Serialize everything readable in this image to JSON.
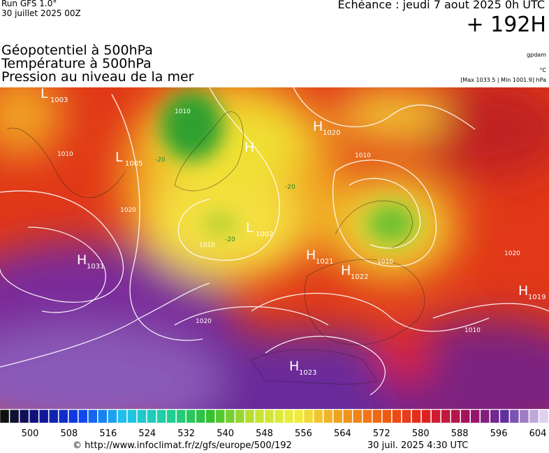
{
  "header": {
    "run": "Run GFS 1.0°",
    "run_date": "30 juillet 2025 00Z",
    "forecast": "Echéance : jeudi 7 aout 2025 0h UTC",
    "lead": "+ 192H",
    "fields": [
      "Géopotentiel à 500hPa",
      "Température à 500hPa",
      "Pression au niveau de la mer"
    ],
    "units": [
      "gpdam",
      "°C",
      "[Max 1033.5 | Min 1001.9] hPa"
    ]
  },
  "map": {
    "centers": [
      {
        "symbol": "L",
        "value": "1003"
      },
      {
        "symbol": "H",
        "value": "1020"
      },
      {
        "symbol": "H"
      },
      {
        "symbol": "L",
        "value": "1005"
      },
      {
        "symbol": "L",
        "value": "1002"
      },
      {
        "symbol": "H",
        "value": "1031"
      },
      {
        "symbol": "H",
        "value": "1021"
      },
      {
        "symbol": "H",
        "value": "1022"
      },
      {
        "symbol": "H",
        "value": "1019"
      },
      {
        "symbol": "H",
        "value": "1023"
      }
    ],
    "isobar_labels": [
      "1010",
      "1010",
      "1020",
      "1010",
      "1020",
      "1010",
      "1010",
      "1020",
      "1010"
    ],
    "temperature_labels": [
      "-20",
      "-20",
      "-20"
    ]
  },
  "colorbar": {
    "ticks": [
      500,
      508,
      516,
      524,
      532,
      540,
      548,
      556,
      564,
      572,
      580,
      588,
      596,
      604
    ]
  },
  "footer": {
    "source": "© http://www.infoclimat.fr/z/gfs/europe/500/192",
    "issued": "30 juil. 2025  4:30 UTC"
  }
}
